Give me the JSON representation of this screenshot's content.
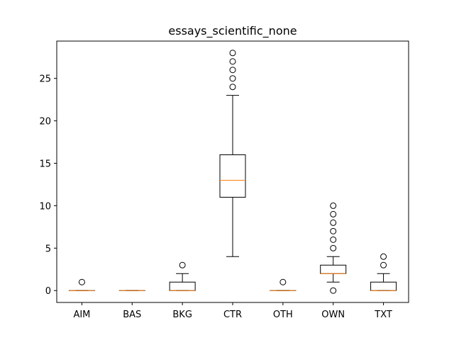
{
  "chart_data": {
    "type": "boxplot",
    "title": "essays_scientific_none",
    "xlabel": "",
    "ylabel": "",
    "ylim": [
      -1.4,
      29.4
    ],
    "yticks": [
      0,
      5,
      10,
      15,
      20,
      25
    ],
    "grid": false,
    "categories": [
      "AIM",
      "BAS",
      "BKG",
      "CTR",
      "OTH",
      "OWN",
      "TXT"
    ],
    "boxes": [
      {
        "category": "AIM",
        "whisker_low": 0,
        "q1": 0,
        "median": 0,
        "q3": 0,
        "whisker_high": 0,
        "outliers": [
          1
        ]
      },
      {
        "category": "BAS",
        "whisker_low": 0,
        "q1": 0,
        "median": 0,
        "q3": 0,
        "whisker_high": 0,
        "outliers": []
      },
      {
        "category": "BKG",
        "whisker_low": 0,
        "q1": 0,
        "median": 0,
        "q3": 1,
        "whisker_high": 2,
        "outliers": [
          3
        ]
      },
      {
        "category": "CTR",
        "whisker_low": 4,
        "q1": 11,
        "median": 13,
        "q3": 16,
        "whisker_high": 23,
        "outliers": [
          24,
          25,
          26,
          27,
          28
        ]
      },
      {
        "category": "OTH",
        "whisker_low": 0,
        "q1": 0,
        "median": 0,
        "q3": 0,
        "whisker_high": 0,
        "outliers": [
          1
        ]
      },
      {
        "category": "OWN",
        "whisker_low": 1,
        "q1": 2,
        "median": 2,
        "q3": 3,
        "whisker_high": 4,
        "outliers": [
          0,
          5,
          6,
          7,
          8,
          9,
          10
        ]
      },
      {
        "category": "TXT",
        "whisker_low": 0,
        "q1": 0,
        "median": 0,
        "q3": 1,
        "whisker_high": 2,
        "outliers": [
          3,
          4
        ]
      }
    ],
    "colors": {
      "box": "#000000",
      "median": "#ff7f0e",
      "outlier_edge": "#000000"
    }
  }
}
